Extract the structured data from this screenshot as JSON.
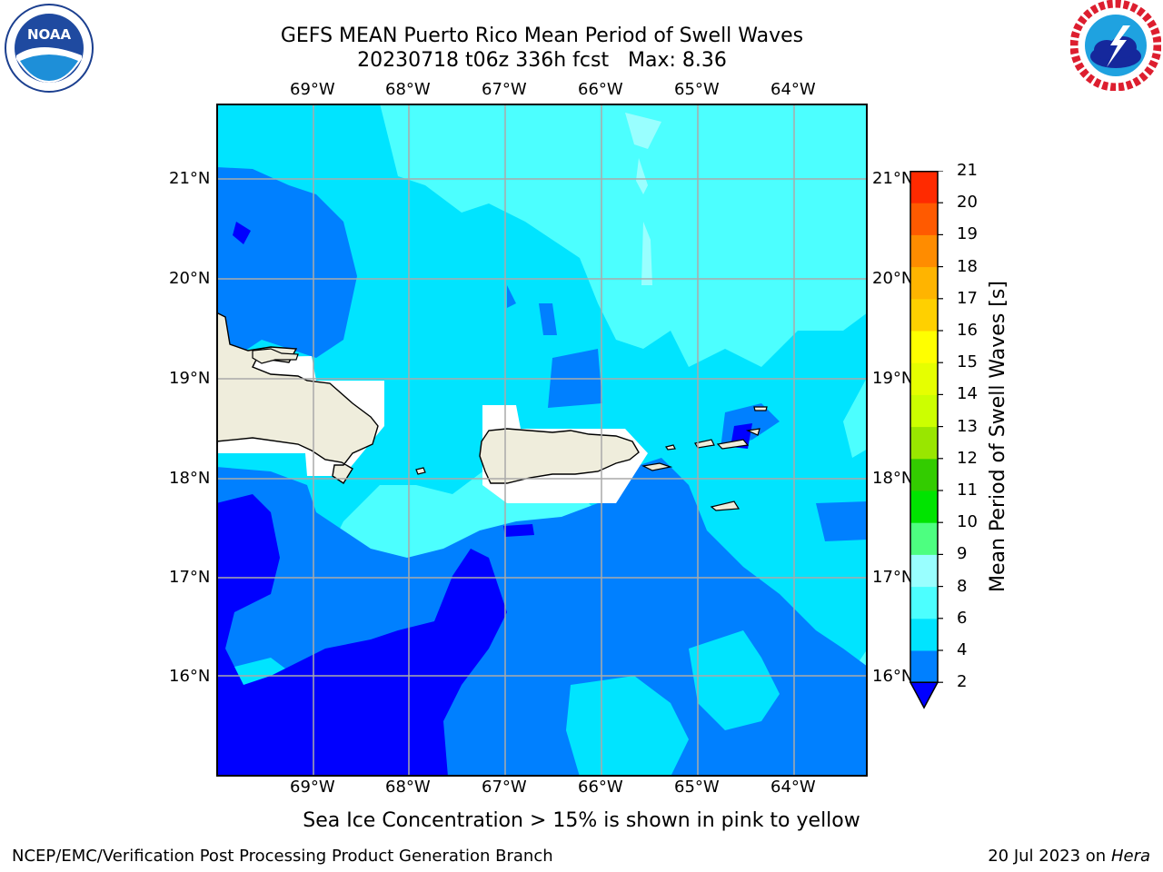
{
  "title": {
    "line1": "GEFS MEAN Puerto Rico Mean Period of Swell Waves",
    "line2": "20230718 t06z 336h fcst   Max: 8.36"
  },
  "logos": {
    "left": {
      "name": "noaa-logo",
      "text": "NOAA",
      "ring_text": "NATIONAL OCEANIC AND ATMOSPHERIC ADMINISTRATION · U.S. DEPARTMENT OF COMMERCE"
    },
    "right": {
      "name": "nws-logo",
      "ring_text": "NATIONAL WEATHER SERVICE"
    }
  },
  "map": {
    "lon_ticks": [
      "69°W",
      "68°W",
      "67°W",
      "66°W",
      "65°W",
      "64°W"
    ],
    "lat_ticks": [
      "21°N",
      "20°N",
      "19°N",
      "18°N",
      "17°N",
      "16°N"
    ],
    "land_color": "#efeddc",
    "gridline_color": "#aaaaaa"
  },
  "colorbar": {
    "title": "Mean Period of Swell Waves [s]",
    "levels": [
      "2",
      "4",
      "6",
      "8",
      "9",
      "10",
      "11",
      "12",
      "13",
      "14",
      "15",
      "16",
      "17",
      "18",
      "19",
      "20",
      "21"
    ],
    "colors": [
      "#0080ff",
      "#00e4ff",
      "#4cffff",
      "#99ffff",
      "#4dff80",
      "#00e400",
      "#33cc00",
      "#99e600",
      "#ccff00",
      "#e6ff00",
      "#ffff00",
      "#ffd000",
      "#ffb400",
      "#ff8c00",
      "#ff5a00",
      "#ff2a00"
    ],
    "under_color": "#0000ff"
  },
  "note": "Sea Ice Concentration > 15% is shown in pink to yellow",
  "footer": {
    "left": "NCEP/EMC/Verification Post Processing Product Generation Branch",
    "right_prefix": "20 Jul 2023 on ",
    "right_italic": "Hera"
  }
}
